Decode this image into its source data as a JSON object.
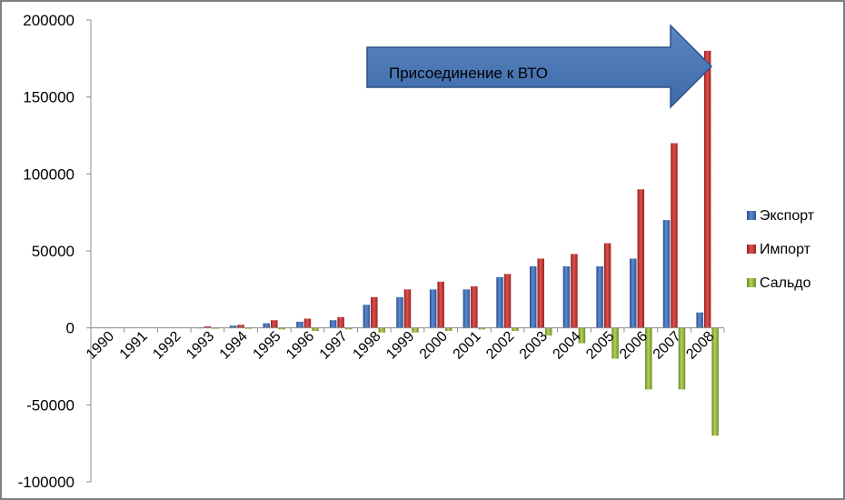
{
  "chart_data": {
    "type": "bar",
    "categories": [
      "1990",
      "1991",
      "1992",
      "1993",
      "1994",
      "1995",
      "1996",
      "1997",
      "1998",
      "1999",
      "2000",
      "2001",
      "2002",
      "2003",
      "2004",
      "2005",
      "2006",
      "2007",
      "2008"
    ],
    "series": [
      {
        "name": "Экспорт",
        "color": "#3f6fb5",
        "values": [
          0,
          0,
          0,
          300,
          1500,
          3000,
          4000,
          5000,
          15000,
          20000,
          25000,
          25000,
          33000,
          40000,
          40000,
          40000,
          45000,
          70000,
          10000
        ]
      },
      {
        "name": "Импорт",
        "color": "#c0302e",
        "values": [
          0,
          0,
          0,
          1000,
          2000,
          5000,
          6000,
          7000,
          20000,
          25000,
          30000,
          27000,
          35000,
          45000,
          48000,
          55000,
          90000,
          120000,
          180000
        ]
      },
      {
        "name": "Сальдо",
        "color": "#8fb040",
        "values": [
          0,
          0,
          0,
          -500,
          -500,
          -1000,
          -2000,
          -1000,
          -3000,
          -3000,
          -2000,
          -1000,
          -2000,
          -5000,
          -10000,
          -20000,
          -40000,
          -40000,
          -70000
        ]
      }
    ],
    "ylim": [
      -100000,
      200000
    ],
    "yticks": [
      "200000",
      "150000",
      "100000",
      "50000",
      "0",
      "-50000",
      "-100000"
    ],
    "ytick_values": [
      200000,
      150000,
      100000,
      50000,
      0,
      -50000,
      -100000
    ],
    "legend_position": "right",
    "grid": false,
    "annotation": "Присоединение к ВТО"
  }
}
